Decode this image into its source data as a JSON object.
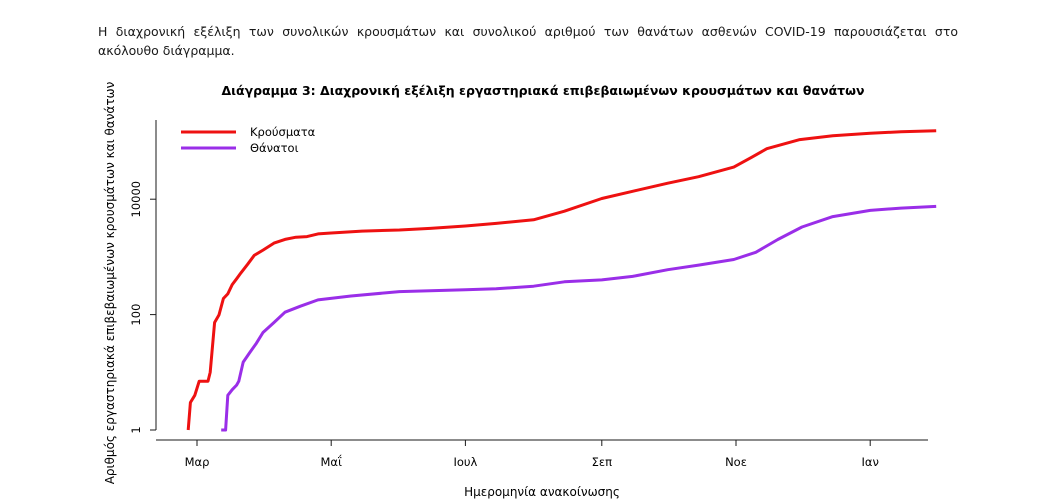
{
  "intro_text": "Η διαχρονική εξέλιξη των συνολικών κρουσμάτων και συνολικού αριθμού των θανάτων ασθενών COVID-19 παρουσιάζεται στο ακόλουθο διάγραμμα.",
  "chart_data": {
    "type": "line",
    "title": "Διάγραμμα 3: Διαχρονική εξέλιξη εργαστηριακά επιβεβαιωμένων κρουσμάτων και θανάτων",
    "xlabel": "Ημερομηνία ανακοίνωσης",
    "ylabel": "Αριθμός εργαστηριακά επιβεβαιωμένων κρουσμάτων και θανάτων",
    "yscale": "log",
    "ylim": [
      1,
      200000
    ],
    "y_ticks": [
      "1",
      "100",
      "10000"
    ],
    "x_ticks": [
      "Μαρ",
      "Μαΐ",
      "Ιουλ",
      "Σεπ",
      "Νοε",
      "Ιαν"
    ],
    "grid": false,
    "legend_position": "top-left",
    "series": [
      {
        "name": "Κρούσματα",
        "color": "#ee1111",
        "points": [
          [
            "2020-02-26",
            1
          ],
          [
            "2020-02-27",
            3
          ],
          [
            "2020-02-29",
            4
          ],
          [
            "2020-03-02",
            7
          ],
          [
            "2020-03-06",
            7
          ],
          [
            "2020-03-07",
            10
          ],
          [
            "2020-03-09",
            73
          ],
          [
            "2020-03-11",
            99
          ],
          [
            "2020-03-13",
            190
          ],
          [
            "2020-03-15",
            228
          ],
          [
            "2020-03-17",
            331
          ],
          [
            "2020-03-19",
            418
          ],
          [
            "2020-03-21",
            530
          ],
          [
            "2020-03-24",
            743
          ],
          [
            "2020-03-27",
            1061
          ],
          [
            "2020-03-31",
            1314
          ],
          [
            "2020-04-05",
            1735
          ],
          [
            "2020-04-10",
            2011
          ],
          [
            "2020-04-15",
            2192
          ],
          [
            "2020-04-20",
            2245
          ],
          [
            "2020-04-25",
            2506
          ],
          [
            "2020-05-01",
            2600
          ],
          [
            "2020-05-15",
            2800
          ],
          [
            "2020-06-01",
            2920
          ],
          [
            "2020-06-15",
            3121
          ],
          [
            "2020-07-01",
            3432
          ],
          [
            "2020-07-15",
            3800
          ],
          [
            "2020-08-01",
            4400
          ],
          [
            "2020-08-15",
            6200
          ],
          [
            "2020-09-01",
            10300
          ],
          [
            "2020-09-15",
            13700
          ],
          [
            "2020-10-01",
            18900
          ],
          [
            "2020-10-15",
            24500
          ],
          [
            "2020-10-31",
            36000
          ],
          [
            "2020-11-08",
            53000
          ],
          [
            "2020-11-15",
            75000
          ],
          [
            "2020-11-30",
            108000
          ],
          [
            "2020-12-15",
            126000
          ],
          [
            "2021-01-01",
            139000
          ],
          [
            "2021-01-15",
            147000
          ],
          [
            "2021-01-31",
            153000
          ]
        ]
      },
      {
        "name": "Θάνατοι",
        "color": "#9a2ee8",
        "points": [
          [
            "2020-03-12",
            1
          ],
          [
            "2020-03-14",
            1
          ],
          [
            "2020-03-15",
            4
          ],
          [
            "2020-03-17",
            5
          ],
          [
            "2020-03-19",
            6
          ],
          [
            "2020-03-20",
            7
          ],
          [
            "2020-03-22",
            15
          ],
          [
            "2020-03-25",
            22
          ],
          [
            "2020-03-28",
            32
          ],
          [
            "2020-03-31",
            49
          ],
          [
            "2020-04-05",
            73
          ],
          [
            "2020-04-10",
            110
          ],
          [
            "2020-04-17",
            140
          ],
          [
            "2020-04-25",
            180
          ],
          [
            "2020-05-10",
            210
          ],
          [
            "2020-06-01",
            250
          ],
          [
            "2020-06-15",
            260
          ],
          [
            "2020-07-01",
            270
          ],
          [
            "2020-07-15",
            280
          ],
          [
            "2020-08-01",
            310
          ],
          [
            "2020-08-15",
            370
          ],
          [
            "2020-09-01",
            400
          ],
          [
            "2020-09-15",
            460
          ],
          [
            "2020-10-01",
            600
          ],
          [
            "2020-10-15",
            720
          ],
          [
            "2020-10-31",
            900
          ],
          [
            "2020-11-10",
            1200
          ],
          [
            "2020-11-20",
            2000
          ],
          [
            "2020-12-01",
            3300
          ],
          [
            "2020-12-15",
            5000
          ],
          [
            "2021-01-01",
            6400
          ],
          [
            "2021-01-15",
            7000
          ],
          [
            "2021-01-31",
            7500
          ]
        ]
      }
    ]
  }
}
